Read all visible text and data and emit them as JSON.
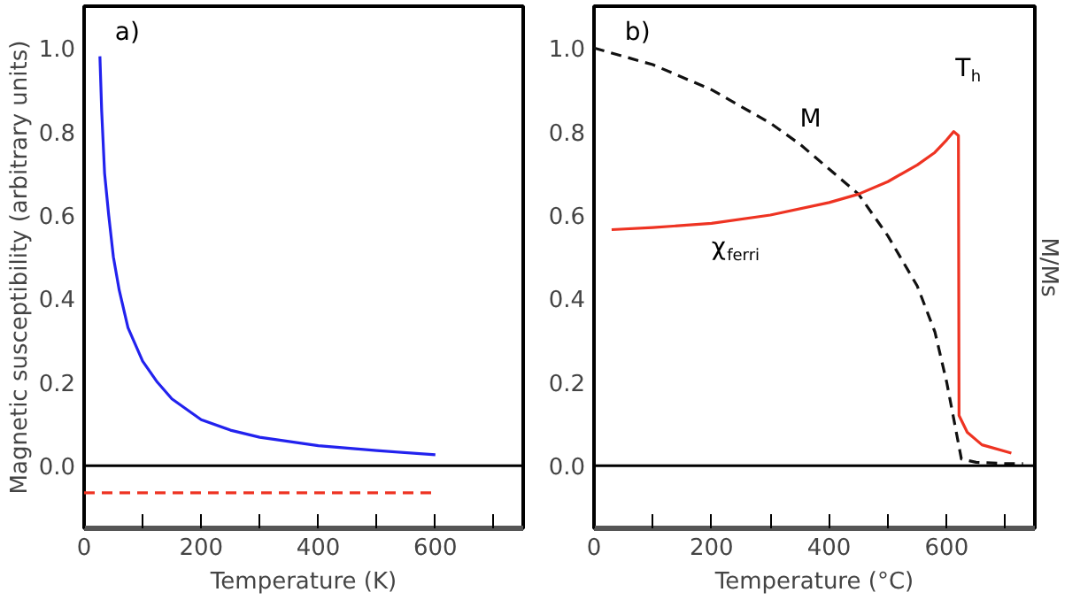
{
  "chart_data": [
    {
      "type": "line",
      "ylabel": "Magnetic susceptibility (arbitrary units)",
      "xlabel": "Temperature (K)",
      "annotations": [
        "a)"
      ],
      "xlim": [
        0,
        750
      ],
      "ylim": [
        -0.15,
        1.1
      ],
      "xticks": [
        0,
        {
          "value": 100,
          "label": null
        },
        200,
        {
          "value": 300,
          "label": null
        },
        400,
        {
          "value": 500,
          "label": null
        },
        600,
        {
          "value": 700,
          "label": null
        }
      ],
      "yticks": [
        {
          "value": 0,
          "label": "0.0"
        },
        {
          "value": 0.2,
          "label": "0.2"
        },
        {
          "value": 0.4,
          "label": "0.4"
        },
        {
          "value": 0.6,
          "label": "0.6"
        },
        {
          "value": 0.8,
          "label": "0.8"
        },
        {
          "value": 1,
          "label": "1.0"
        }
      ],
      "grid": false,
      "ref_lines": [
        {
          "axis": "y",
          "value": 0,
          "color": "#000000"
        }
      ],
      "series": [
        {
          "color": "#2222ee",
          "x": [
            27,
            30,
            35,
            42,
            50,
            60,
            75,
            100,
            125,
            150,
            200,
            250,
            300,
            400,
            500,
            600
          ],
          "values": [
            0.98,
            0.85,
            0.7,
            0.6,
            0.5,
            0.42,
            0.33,
            0.25,
            0.2,
            0.16,
            0.11,
            0.085,
            0.068,
            0.048,
            0.036,
            0.026
          ]
        },
        {
          "color": "#ee3322",
          "line_style": "dashed",
          "x": [
            0,
            600
          ],
          "values": [
            -0.065,
            -0.065
          ]
        }
      ]
    },
    {
      "type": "line",
      "xlabel": "Temperature (°C)",
      "y2label": "M/Ms",
      "annotations": [
        "b)",
        "T$_{h}$"
      ],
      "xlim": [
        0,
        750
      ],
      "ylim": [
        -0.15,
        1.1
      ],
      "xticks": [
        0,
        {
          "value": 100,
          "label": null
        },
        200,
        {
          "value": 300,
          "label": null
        },
        400,
        {
          "value": 500,
          "label": null
        },
        600,
        {
          "value": 700,
          "label": null
        }
      ],
      "yticks": [
        {
          "value": 0,
          "label": "0.0"
        },
        {
          "value": 0.2,
          "label": "0.2"
        },
        {
          "value": 0.4,
          "label": "0.4"
        },
        {
          "value": 0.6,
          "label": "0.6"
        },
        {
          "value": 0.8,
          "label": "0.8"
        },
        {
          "value": 1,
          "label": "1.0"
        }
      ],
      "grid": false,
      "ref_lines": [
        {
          "axis": "y",
          "value": 0,
          "color": "#000000"
        }
      ],
      "series": [
        {
          "name": "M",
          "color": "#111111",
          "line_style": "dashed",
          "x": [
            0,
            100,
            200,
            300,
            350,
            400,
            450,
            500,
            550,
            580,
            600,
            615,
            625,
            650,
            700,
            730
          ],
          "values": [
            1.0,
            0.96,
            0.9,
            0.82,
            0.77,
            0.71,
            0.65,
            0.55,
            0.43,
            0.32,
            0.2,
            0.09,
            0.016,
            0.008,
            0.005,
            0.005
          ]
        },
        {
          "name": "χ$_{ferri}$",
          "color": "#ee3322",
          "x": [
            30,
            100,
            200,
            300,
            400,
            450,
            500,
            550,
            580,
            600,
            612,
            620,
            621,
            635,
            660,
            710
          ],
          "values": [
            0.565,
            0.57,
            0.58,
            0.6,
            0.63,
            0.65,
            0.68,
            0.72,
            0.75,
            0.78,
            0.8,
            0.79,
            0.12,
            0.08,
            0.05,
            0.03
          ]
        }
      ]
    }
  ]
}
